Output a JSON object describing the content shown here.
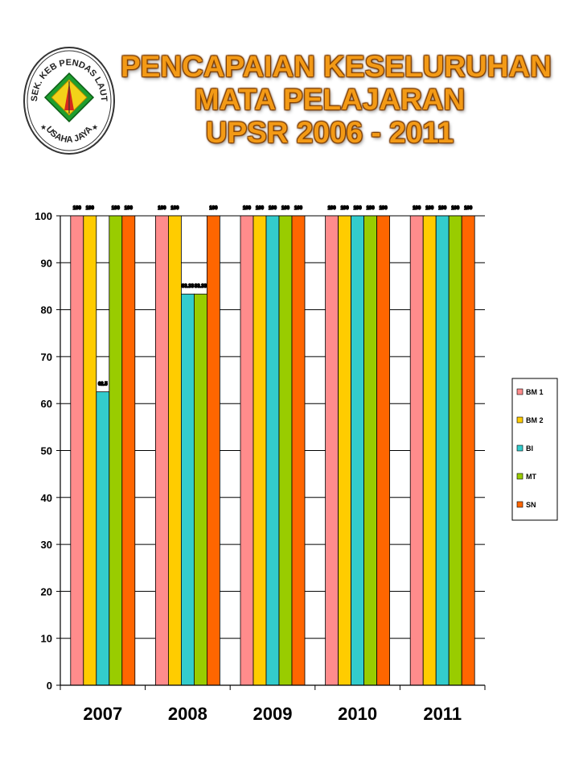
{
  "logo": {
    "text_top": "SEK. KEB PENDAS LAUT",
    "text_bottom": "USAHA JAYA"
  },
  "title_lines": [
    "PENCAPAIAN KESELURUHAN",
    "MATA PELAJARAN",
    "UPSR 2006 - 2011"
  ],
  "colors": {
    "title": "#f39a16",
    "BM 1": "#ff8c8c",
    "BM 2": "#ffcc00",
    "BI": "#33cccc",
    "MT": "#99cc00",
    "SN": "#ff6600"
  },
  "chart_data": {
    "type": "bar",
    "categories": [
      "2007",
      "2008",
      "2009",
      "2010",
      "2011"
    ],
    "series": [
      {
        "name": "BM 1",
        "values": [
          100,
          100,
          100,
          100,
          100
        ]
      },
      {
        "name": "BM 2",
        "values": [
          100,
          100,
          100,
          100,
          100
        ]
      },
      {
        "name": "BI",
        "values": [
          62.5,
          83.33,
          100,
          100,
          100
        ]
      },
      {
        "name": "MT",
        "values": [
          100,
          83.33,
          100,
          100,
          100
        ]
      },
      {
        "name": "SN",
        "values": [
          100,
          100,
          100,
          100,
          100
        ]
      }
    ],
    "data_labels": {
      "BI": [
        "62.5",
        "83.33",
        "100",
        "100",
        "100"
      ],
      "MT": [
        "100",
        "83.33",
        "100",
        "100",
        "100"
      ]
    },
    "ylim": [
      0,
      100
    ],
    "yticks": [
      "0",
      "10",
      "20",
      "30",
      "40",
      "50",
      "60",
      "70",
      "80",
      "90",
      "100"
    ],
    "grid": true,
    "legend": "right",
    "title": "",
    "xlabel": "",
    "ylabel": ""
  }
}
